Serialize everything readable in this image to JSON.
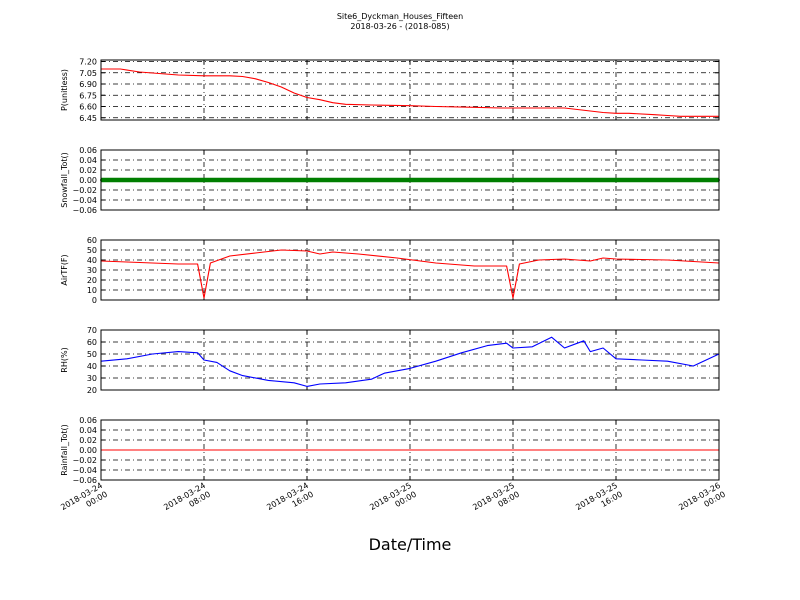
{
  "title": "Site6_Dyckman_Houses_Fifteen",
  "subtitle": "2018-03-26 - (2018-085)",
  "xlabel": "Date/Time",
  "x_tick_labels": [
    [
      "2018-03-24",
      "00:00"
    ],
    [
      "2018-03-24",
      "08:00"
    ],
    [
      "2018-03-24",
      "16:00"
    ],
    [
      "2018-03-25",
      "00:00"
    ],
    [
      "2018-03-25",
      "08:00"
    ],
    [
      "2018-03-25",
      "16:00"
    ],
    [
      "2018-03-26",
      "00:00"
    ]
  ],
  "colors": {
    "ph": "#ff0000",
    "snow": "#007f00",
    "temp": "#ff0000",
    "rh": "#0000ff",
    "rain": "#ff0000",
    "grid": "#000000"
  },
  "chart_data": [
    {
      "type": "line",
      "ylabel": "P(unitless)",
      "x_range": [
        "2018-03-24 00:00",
        "2018-03-26 00:00"
      ],
      "ylim": [
        6.42,
        7.22
      ],
      "yticks": [
        6.45,
        6.6,
        6.75,
        6.9,
        7.05,
        7.2
      ],
      "ytick_labels": [
        "6.45",
        "6.60",
        "6.75",
        "6.90",
        "7.05",
        "7.20"
      ],
      "grid": true,
      "series": [
        {
          "x": [
            "2018-03-24 00:00",
            "2018-03-24 01:30",
            "2018-03-24 03:00",
            "2018-03-24 06:00",
            "2018-03-24 08:00",
            "2018-03-24 10:00",
            "2018-03-24 11:00",
            "2018-03-24 12:00",
            "2018-03-24 13:00",
            "2018-03-24 14:00",
            "2018-03-24 15:00",
            "2018-03-24 16:00",
            "2018-03-24 17:00",
            "2018-03-24 18:00",
            "2018-03-24 19:00",
            "2018-03-24 21:00",
            "2018-03-25 00:00",
            "2018-03-25 02:00",
            "2018-03-25 05:00",
            "2018-03-25 07:00",
            "2018-03-25 08:00",
            "2018-03-25 10:00",
            "2018-03-25 12:00",
            "2018-03-25 13:00",
            "2018-03-25 14:00",
            "2018-03-25 15:00",
            "2018-03-25 16:00",
            "2018-03-25 17:00",
            "2018-03-25 19:00",
            "2018-03-25 20:00",
            "2018-03-25 21:00",
            "2018-03-26 00:00"
          ],
          "y": [
            7.1,
            7.1,
            7.06,
            7.02,
            7.01,
            7.01,
            7.0,
            6.97,
            6.92,
            6.86,
            6.78,
            6.72,
            6.69,
            6.65,
            6.63,
            6.62,
            6.61,
            6.6,
            6.59,
            6.58,
            6.58,
            6.58,
            6.58,
            6.56,
            6.54,
            6.52,
            6.51,
            6.51,
            6.49,
            6.48,
            6.47,
            6.47
          ]
        }
      ]
    },
    {
      "type": "scatter",
      "ylabel": "Snowfall_Tot()",
      "x_range": [
        "2018-03-24 00:00",
        "2018-03-26 00:00"
      ],
      "ylim": [
        -0.06,
        0.06
      ],
      "yticks": [
        -0.06,
        -0.04,
        -0.02,
        0.0,
        0.02,
        0.04,
        0.06
      ],
      "ytick_labels": [
        "−0.06",
        "−0.04",
        "−0.02",
        "0.00",
        "0.02",
        "0.04",
        "0.06"
      ],
      "grid": true,
      "series": [
        {
          "x": [
            "2018-03-24 00:00",
            "2018-03-26 00:00"
          ],
          "y": [
            0.0,
            0.0
          ],
          "note_marker": "dense"
        }
      ]
    },
    {
      "type": "line",
      "ylabel": "AirTF(F)",
      "x_range": [
        "2018-03-24 00:00",
        "2018-03-26 00:00"
      ],
      "ylim": [
        0,
        60
      ],
      "yticks": [
        0,
        10,
        20,
        30,
        40,
        50,
        60
      ],
      "ytick_labels": [
        "0",
        "10",
        "20",
        "30",
        "40",
        "50",
        "60"
      ],
      "grid": true,
      "series": [
        {
          "x": [
            "2018-03-24 00:00",
            "2018-03-24 02:00",
            "2018-03-24 04:00",
            "2018-03-24 06:00",
            "2018-03-24 07:30",
            "2018-03-24 08:00",
            "2018-03-24 08:30",
            "2018-03-24 10:00",
            "2018-03-24 12:00",
            "2018-03-24 14:00",
            "2018-03-24 16:00",
            "2018-03-24 17:00",
            "2018-03-24 18:00",
            "2018-03-24 20:00",
            "2018-03-24 23:00",
            "2018-03-25 02:00",
            "2018-03-25 05:00",
            "2018-03-25 07:30",
            "2018-03-25 08:00",
            "2018-03-25 08:30",
            "2018-03-25 10:00",
            "2018-03-25 12:00",
            "2018-03-25 14:00",
            "2018-03-25 15:00",
            "2018-03-25 16:00",
            "2018-03-25 20:00",
            "2018-03-26 00:00"
          ],
          "y": [
            39,
            38,
            37,
            36,
            36,
            2,
            37,
            44,
            47,
            50,
            49,
            46,
            48,
            46,
            42,
            37,
            34,
            34,
            2,
            36,
            40,
            41,
            39,
            42,
            41,
            40,
            37
          ]
        }
      ]
    },
    {
      "type": "line",
      "ylabel": "RH(%)",
      "x_range": [
        "2018-03-24 00:00",
        "2018-03-26 00:00"
      ],
      "ylim": [
        20,
        70
      ],
      "yticks": [
        20,
        30,
        40,
        50,
        60,
        70
      ],
      "ytick_labels": [
        "20",
        "30",
        "40",
        "50",
        "60",
        "70"
      ],
      "grid": true,
      "series": [
        {
          "x": [
            "2018-03-24 00:00",
            "2018-03-24 02:00",
            "2018-03-24 04:00",
            "2018-03-24 06:00",
            "2018-03-24 07:30",
            "2018-03-24 08:00",
            "2018-03-24 09:00",
            "2018-03-24 10:00",
            "2018-03-24 11:00",
            "2018-03-24 13:00",
            "2018-03-24 15:00",
            "2018-03-24 16:00",
            "2018-03-24 17:00",
            "2018-03-24 19:00",
            "2018-03-24 21:00",
            "2018-03-24 22:00",
            "2018-03-25 00:00",
            "2018-03-25 02:00",
            "2018-03-25 04:00",
            "2018-03-25 06:00",
            "2018-03-25 07:30",
            "2018-03-25 08:00",
            "2018-03-25 09:30",
            "2018-03-25 11:00",
            "2018-03-25 12:00",
            "2018-03-25 13:00",
            "2018-03-25 13:30",
            "2018-03-25 14:00",
            "2018-03-25 15:00",
            "2018-03-25 16:00",
            "2018-03-25 18:00",
            "2018-03-25 20:00",
            "2018-03-25 22:00",
            "2018-03-26 00:00"
          ],
          "y": [
            44,
            46,
            50,
            52,
            51,
            45,
            43,
            36,
            32,
            28,
            26,
            23,
            25,
            26,
            29,
            34,
            38,
            44,
            51,
            57,
            59,
            55,
            56,
            64,
            55,
            59,
            61,
            52,
            55,
            46,
            45,
            44,
            40,
            50
          ]
        }
      ]
    },
    {
      "type": "line",
      "ylabel": "Rainfall_Tot()",
      "x_range": [
        "2018-03-24 00:00",
        "2018-03-26 00:00"
      ],
      "ylim": [
        -0.06,
        0.06
      ],
      "yticks": [
        -0.06,
        -0.04,
        -0.02,
        0.0,
        0.02,
        0.04,
        0.06
      ],
      "ytick_labels": [
        "−0.06",
        "−0.04",
        "−0.02",
        "0.00",
        "0.02",
        "0.04",
        "0.06"
      ],
      "grid": true,
      "series": [
        {
          "x": [
            "2018-03-24 00:00",
            "2018-03-26 00:00"
          ],
          "y": [
            0.0,
            0.0
          ]
        }
      ]
    }
  ]
}
